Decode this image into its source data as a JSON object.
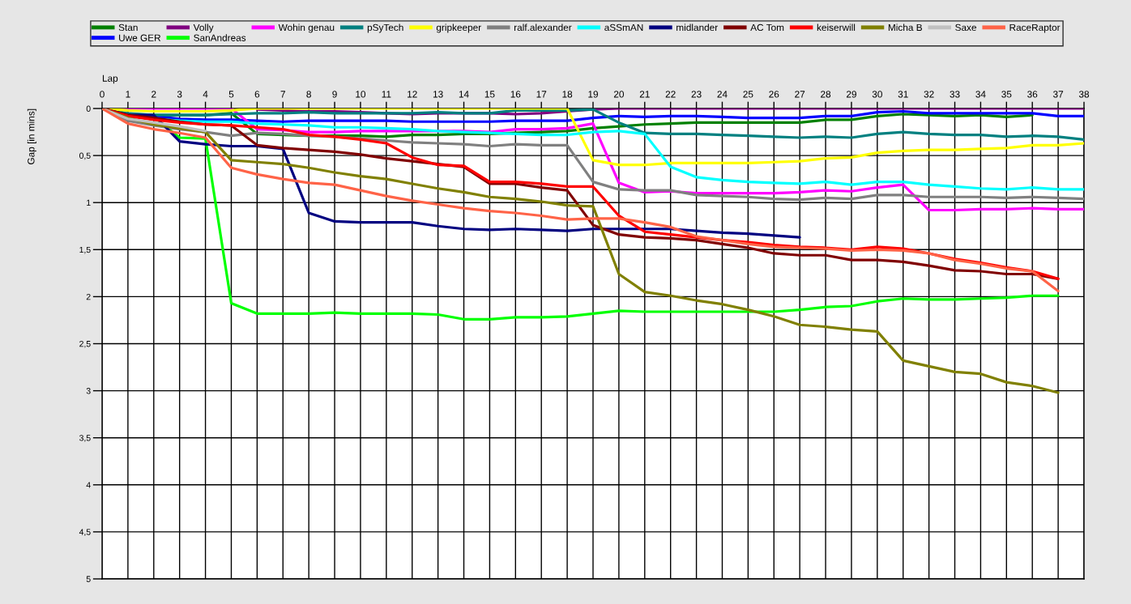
{
  "chart_data": {
    "type": "line",
    "xlabel": "Lap",
    "ylabel": "Gap [in mins]",
    "x": [
      0,
      1,
      2,
      3,
      4,
      5,
      6,
      7,
      8,
      9,
      10,
      11,
      12,
      13,
      14,
      15,
      16,
      17,
      18,
      19,
      20,
      21,
      22,
      23,
      24,
      25,
      26,
      27,
      28,
      29,
      30,
      31,
      32,
      33,
      34,
      35,
      36,
      37,
      38
    ],
    "xlim": [
      0,
      38
    ],
    "xticks": [
      0,
      1,
      2,
      3,
      4,
      5,
      6,
      7,
      8,
      9,
      10,
      11,
      12,
      13,
      14,
      15,
      16,
      17,
      18,
      19,
      20,
      21,
      22,
      23,
      24,
      25,
      26,
      27,
      28,
      29,
      30,
      31,
      32,
      33,
      34,
      35,
      36,
      37,
      38
    ],
    "ylim": [
      5,
      0
    ],
    "yticks": [
      0,
      {
        "value": 0.5,
        "label": "0,5"
      },
      1,
      {
        "value": 1.5,
        "label": "1,5"
      },
      2,
      {
        "value": 2.5,
        "label": "2,5"
      },
      3,
      {
        "value": 3.5,
        "label": "3,5"
      },
      4,
      {
        "value": 4.5,
        "label": "4,5"
      },
      5
    ],
    "grid": true,
    "legend": "top",
    "line_style": "solid",
    "series": [
      {
        "name": "Stan",
        "color": "#008000",
        "values": [
          0,
          0.06,
          0.07,
          0.07,
          0.07,
          0.05,
          0.27,
          0.28,
          0.29,
          0.29,
          0.29,
          0.3,
          0.28,
          0.28,
          0.27,
          0.27,
          0.26,
          0.25,
          0.24,
          0.21,
          0.19,
          0.17,
          0.16,
          0.15,
          0.15,
          0.15,
          0.15,
          0.15,
          0.12,
          0.12,
          0.08,
          0.06,
          0.07,
          0.08,
          0.07,
          0.09,
          0.07,
          null,
          null
        ]
      },
      {
        "name": "Uwe GER",
        "color": "#0000ff",
        "values": [
          0,
          0.07,
          0.08,
          0.11,
          0.12,
          0.12,
          0.13,
          0.14,
          0.13,
          0.13,
          0.13,
          0.13,
          0.14,
          0.14,
          0.14,
          0.14,
          0.13,
          0.13,
          0.13,
          0.1,
          0.08,
          0.09,
          0.08,
          0.08,
          0.09,
          0.1,
          0.1,
          0.1,
          0.08,
          0.08,
          0.04,
          0.03,
          0.05,
          0.05,
          0.05,
          0.05,
          0.05,
          0.08,
          0.08
        ]
      },
      {
        "name": "Volly",
        "color": "#800080",
        "values": [
          null,
          null,
          null,
          null,
          null,
          null,
          0.01,
          0.02,
          0.03,
          0.03,
          0.04,
          0.05,
          0.06,
          0.05,
          0.05,
          0.05,
          0.06,
          0.05,
          0.03,
          0.01,
          0,
          0,
          0,
          0,
          0,
          0,
          0,
          0,
          0,
          0,
          0,
          0,
          0,
          0,
          0,
          0,
          0,
          0,
          0
        ]
      },
      {
        "name": "SanAndreas",
        "color": "#00ff00",
        "values": [
          null,
          null,
          0.09,
          0.31,
          0.32,
          2.07,
          2.18,
          2.18,
          2.18,
          2.17,
          2.18,
          2.18,
          2.18,
          2.19,
          2.24,
          2.24,
          2.22,
          2.22,
          2.21,
          2.18,
          2.15,
          2.16,
          2.16,
          2.16,
          2.16,
          2.16,
          2.16,
          2.14,
          2.11,
          2.1,
          2.05,
          2.02,
          2.03,
          2.03,
          2.02,
          2.01,
          1.99,
          1.99,
          null
        ]
      },
      {
        "name": "Wohin genau",
        "color": "#ff00ff",
        "values": [
          0,
          0,
          0,
          0,
          0,
          0,
          0.22,
          0.23,
          0.25,
          0.25,
          0.24,
          0.24,
          0.24,
          0.24,
          0.24,
          0.25,
          0.22,
          0.22,
          0.21,
          0.16,
          0.79,
          0.89,
          0.88,
          0.9,
          0.9,
          0.9,
          0.9,
          0.89,
          0.87,
          0.88,
          0.84,
          0.81,
          1.08,
          1.08,
          1.07,
          1.07,
          1.06,
          1.07,
          1.07
        ]
      },
      {
        "name": "pSyTech",
        "color": "#008080",
        "values": [
          0,
          0.05,
          0.07,
          0.07,
          0.07,
          0.06,
          0.05,
          0.05,
          0.04,
          0.05,
          0.05,
          0.05,
          0.05,
          0.04,
          0.05,
          0.05,
          0.02,
          0.02,
          0.02,
          0.01,
          0.15,
          0.26,
          0.27,
          0.27,
          0.28,
          0.29,
          0.3,
          0.31,
          0.3,
          0.31,
          0.27,
          0.25,
          0.27,
          0.28,
          0.28,
          0.3,
          0.29,
          0.3,
          0.33
        ]
      },
      {
        "name": "gripkeeper",
        "color": "#ffff00",
        "values": [
          0,
          0.02,
          0.03,
          0.03,
          0.03,
          0.02,
          0,
          0,
          0,
          0,
          0,
          0,
          0,
          0,
          0,
          0,
          0,
          0,
          0,
          0.55,
          0.6,
          0.6,
          0.58,
          0.58,
          0.58,
          0.58,
          0.57,
          0.56,
          0.53,
          0.52,
          0.47,
          0.45,
          0.44,
          0.44,
          0.43,
          0.42,
          0.39,
          0.39,
          0.37
        ]
      },
      {
        "name": "ralf.alexander",
        "color": "#808080",
        "values": [
          0,
          0.13,
          0.18,
          0.22,
          0.25,
          0.29,
          0.26,
          0.27,
          0.29,
          0.3,
          0.32,
          0.34,
          0.36,
          0.37,
          0.38,
          0.4,
          0.38,
          0.39,
          0.39,
          0.78,
          0.86,
          0.87,
          0.87,
          0.92,
          0.93,
          0.94,
          0.96,
          0.97,
          0.95,
          0.96,
          0.92,
          0.92,
          0.94,
          0.94,
          0.94,
          0.95,
          0.94,
          0.95,
          0.96
        ]
      },
      {
        "name": "aSSmAN",
        "color": "#00ffff",
        "values": [
          null,
          null,
          0.11,
          0.13,
          0.14,
          0.14,
          0.16,
          0.17,
          0.18,
          0.2,
          0.2,
          0.21,
          0.22,
          0.24,
          0.25,
          0.26,
          0.27,
          0.28,
          0.28,
          0.25,
          0.24,
          0.27,
          0.62,
          0.73,
          0.76,
          0.78,
          0.79,
          0.8,
          0.78,
          0.81,
          0.78,
          0.78,
          0.81,
          0.83,
          0.85,
          0.86,
          0.84,
          0.86,
          0.86
        ]
      },
      {
        "name": "midlander",
        "color": "#000080",
        "values": [
          0,
          0.07,
          0.07,
          0.35,
          0.38,
          0.4,
          0.4,
          0.43,
          1.11,
          1.2,
          1.21,
          1.21,
          1.21,
          1.25,
          1.28,
          1.29,
          1.28,
          1.29,
          1.3,
          1.28,
          1.28,
          1.28,
          1.28,
          1.3,
          1.32,
          1.33,
          1.35,
          1.37,
          null,
          null,
          null,
          null,
          null,
          null,
          null,
          null,
          null,
          null,
          null
        ]
      },
      {
        "name": "AC Tom",
        "color": "#800000",
        "values": [
          0,
          0.07,
          0.1,
          0.14,
          0.17,
          0.18,
          0.39,
          0.42,
          0.44,
          0.46,
          0.49,
          0.53,
          0.56,
          0.59,
          0.62,
          0.8,
          0.8,
          0.84,
          0.87,
          1.24,
          1.34,
          1.37,
          1.38,
          1.4,
          1.44,
          1.48,
          1.54,
          1.56,
          1.56,
          1.61,
          1.61,
          1.63,
          1.67,
          1.72,
          1.73,
          1.76,
          1.76,
          1.81,
          null
        ]
      },
      {
        "name": "keiserwill",
        "color": "#ff0000",
        "values": [
          0,
          0.08,
          0.12,
          0.15,
          0.17,
          0.18,
          0.2,
          0.22,
          0.28,
          0.3,
          0.33,
          0.37,
          0.52,
          0.6,
          0.61,
          0.78,
          0.78,
          0.8,
          0.83,
          0.83,
          1.14,
          1.31,
          1.34,
          1.37,
          1.4,
          1.42,
          1.45,
          1.47,
          1.48,
          1.5,
          1.47,
          1.49,
          1.54,
          1.6,
          1.64,
          1.69,
          1.73,
          1.81,
          null
        ]
      },
      {
        "name": "Micha B",
        "color": "#808000",
        "values": [
          0,
          0.1,
          0.17,
          0.21,
          0.25,
          0.55,
          0.57,
          0.59,
          0.63,
          0.68,
          0.72,
          0.75,
          0.8,
          0.85,
          0.89,
          0.94,
          0.96,
          0.99,
          1.03,
          1.04,
          1.76,
          1.95,
          1.99,
          2.04,
          2.08,
          2.14,
          2.21,
          2.3,
          2.32,
          2.35,
          2.37,
          2.68,
          2.74,
          2.8,
          2.82,
          2.91,
          2.95,
          3.02,
          null
        ]
      },
      {
        "name": "Saxe",
        "color": "#c0c0c0",
        "values": [
          0,
          0.11,
          0.15,
          0.19,
          0.24,
          null,
          null,
          null,
          null,
          null,
          null,
          null,
          null,
          null,
          null,
          null,
          null,
          null,
          null,
          null,
          null,
          null,
          null,
          null,
          null,
          null,
          null,
          null,
          null,
          null,
          null,
          null,
          null,
          null,
          null,
          null,
          null,
          null,
          null
        ]
      },
      {
        "name": "RaceRaptor",
        "color": "#ff6347",
        "values": [
          0,
          0.16,
          0.22,
          0.26,
          0.31,
          0.63,
          0.7,
          0.75,
          0.79,
          0.81,
          0.87,
          0.93,
          0.98,
          1.02,
          1.06,
          1.09,
          1.11,
          1.14,
          1.18,
          1.17,
          1.17,
          1.21,
          1.26,
          1.36,
          1.4,
          1.44,
          1.47,
          1.48,
          1.49,
          1.51,
          1.5,
          1.51,
          1.54,
          1.61,
          1.65,
          1.7,
          1.73,
          1.94,
          null
        ]
      }
    ]
  }
}
